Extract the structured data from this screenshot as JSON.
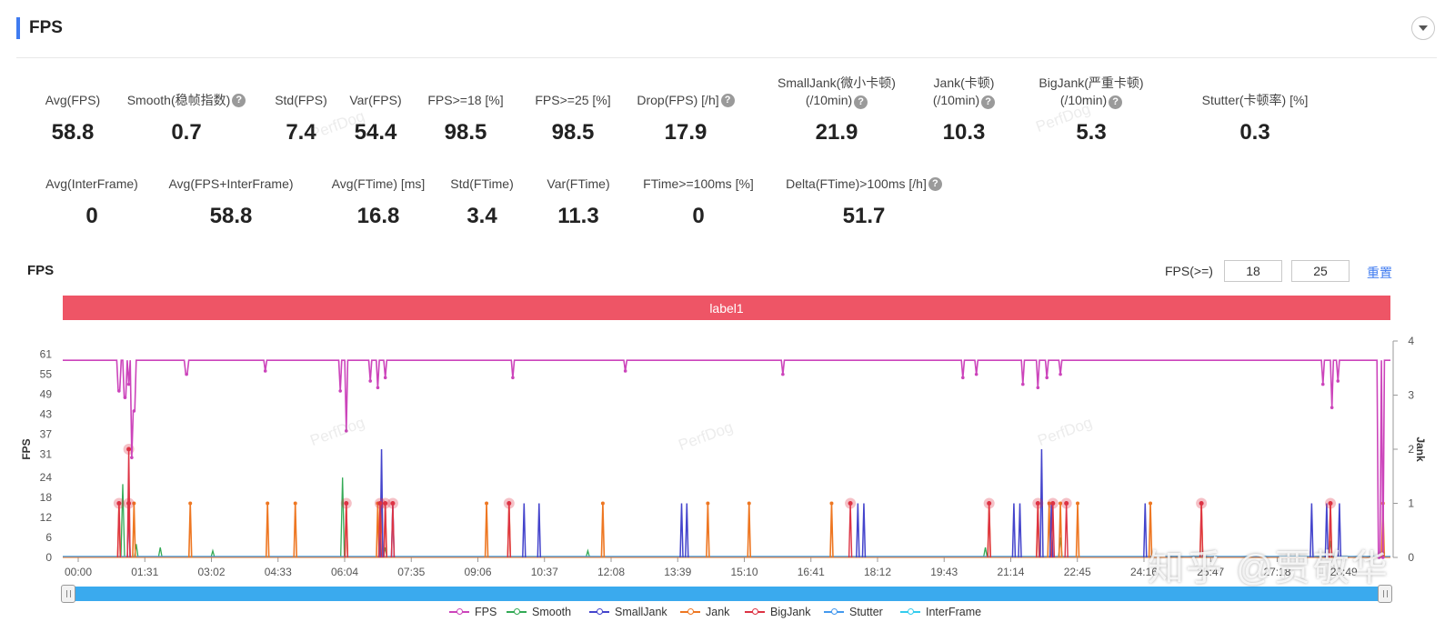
{
  "header": {
    "title": "FPS"
  },
  "metrics_row1": [
    {
      "label": "Avg(FPS)",
      "value": "58.8",
      "help": false
    },
    {
      "label": "Smooth(稳帧指数)",
      "value": "0.7",
      "help": true
    },
    {
      "label": "Std(FPS)",
      "value": "7.4",
      "help": false
    },
    {
      "label": "Var(FPS)",
      "value": "54.4",
      "help": false
    },
    {
      "label": "FPS>=18 [%]",
      "value": "98.5",
      "help": false
    },
    {
      "label": "FPS>=25 [%]",
      "value": "98.5",
      "help": false
    },
    {
      "label": "Drop(FPS) [/h]",
      "value": "17.9",
      "help": true
    },
    {
      "label": "SmallJank(微小卡顿)",
      "label2": "(/10min)",
      "value": "21.9",
      "help": true
    },
    {
      "label": "Jank(卡顿)",
      "label2": "(/10min)",
      "value": "10.3",
      "help": true
    },
    {
      "label": "BigJank(严重卡顿)",
      "label2": "(/10min)",
      "value": "5.3",
      "help": true
    },
    {
      "label": "Stutter(卡顿率) [%]",
      "value": "0.3",
      "help": false
    }
  ],
  "metrics_row2": [
    {
      "label": "Avg(InterFrame)",
      "value": "0",
      "help": false
    },
    {
      "label": "Avg(FPS+InterFrame)",
      "value": "58.8",
      "help": false
    },
    {
      "label": "Avg(FTime) [ms]",
      "value": "16.8",
      "help": false
    },
    {
      "label": "Std(FTime)",
      "value": "3.4",
      "help": false
    },
    {
      "label": "Var(FTime)",
      "value": "11.3",
      "help": false
    },
    {
      "label": "FTime>=100ms [%]",
      "value": "0",
      "help": false
    },
    {
      "label": "Delta(FTime)>100ms [/h]",
      "value": "51.7",
      "help": true
    }
  ],
  "chart_section": {
    "title": "FPS",
    "threshold_label": "FPS(>=)",
    "threshold_1": "18",
    "threshold_2": "25",
    "reset_label": "重置",
    "band_label": "label1",
    "help_glyph": "?"
  },
  "watermark_text": "PerfDog",
  "attribution": "知乎 @贾敬华",
  "colors": {
    "fps": "#cc44bb",
    "smooth": "#33aa55",
    "smalljank": "#4444cc",
    "jank": "#ee7722",
    "bigjank": "#dd3344",
    "stutter": "#4499ee",
    "interframe": "#33ccee",
    "accent": "#3f7bf0",
    "band": "#ee5566"
  },
  "chart_data": {
    "type": "line",
    "ylabel": "FPS",
    "y2label": "Jank",
    "ylim": [
      0,
      65
    ],
    "y_ticks": [
      0,
      6,
      12,
      18,
      24,
      31,
      37,
      43,
      49,
      55,
      61
    ],
    "y2lim": [
      0,
      4
    ],
    "y2_ticks": [
      0,
      1,
      2,
      3,
      4
    ],
    "xlim": [
      0,
      1770
    ],
    "x_ticks": [
      "00:00",
      "01:31",
      "03:02",
      "04:33",
      "06:04",
      "07:35",
      "09:06",
      "10:37",
      "12:08",
      "13:39",
      "15:10",
      "16:41",
      "18:12",
      "19:43",
      "21:14",
      "22:45",
      "24:16",
      "25:47",
      "27:18",
      "28:49"
    ],
    "legend": [
      "FPS",
      "Smooth",
      "SmallJank",
      "Jank",
      "BigJank",
      "Stutter",
      "InterFrame"
    ],
    "fps_baseline": 58.8,
    "fps_dips": [
      {
        "t": 75,
        "v": 50
      },
      {
        "t": 83,
        "v": 48
      },
      {
        "t": 88,
        "v": 52
      },
      {
        "t": 92,
        "v": 30
      },
      {
        "t": 95,
        "v": 44
      },
      {
        "t": 165,
        "v": 55
      },
      {
        "t": 270,
        "v": 56
      },
      {
        "t": 370,
        "v": 50
      },
      {
        "t": 378,
        "v": 38
      },
      {
        "t": 410,
        "v": 53
      },
      {
        "t": 420,
        "v": 51
      },
      {
        "t": 430,
        "v": 54
      },
      {
        "t": 600,
        "v": 54
      },
      {
        "t": 750,
        "v": 56
      },
      {
        "t": 960,
        "v": 55
      },
      {
        "t": 1200,
        "v": 54
      },
      {
        "t": 1218,
        "v": 55
      },
      {
        "t": 1280,
        "v": 52
      },
      {
        "t": 1300,
        "v": 51
      },
      {
        "t": 1312,
        "v": 54
      },
      {
        "t": 1330,
        "v": 55
      },
      {
        "t": 1680,
        "v": 52
      },
      {
        "t": 1692,
        "v": 45
      },
      {
        "t": 1700,
        "v": 53
      },
      {
        "t": 1755,
        "v": 0
      },
      {
        "t": 1760,
        "v": 0
      }
    ],
    "jank_t": [
      75,
      95,
      170,
      273,
      310,
      378,
      420,
      425,
      430,
      565,
      595,
      720,
      860,
      915,
      1025,
      1235,
      1300,
      1315,
      1330,
      1353,
      1450,
      1518,
      1690,
      1760
    ],
    "bigjank": [
      {
        "t": 75,
        "v": 1
      },
      {
        "t": 88,
        "v": 1
      },
      {
        "t": 88,
        "v": 2
      },
      {
        "t": 378,
        "v": 1
      },
      {
        "t": 423,
        "v": 1
      },
      {
        "t": 430,
        "v": 1
      },
      {
        "t": 440,
        "v": 1
      },
      {
        "t": 595,
        "v": 1
      },
      {
        "t": 1050,
        "v": 1
      },
      {
        "t": 1235,
        "v": 1
      },
      {
        "t": 1300,
        "v": 1
      },
      {
        "t": 1320,
        "v": 1
      },
      {
        "t": 1338,
        "v": 1
      },
      {
        "t": 1518,
        "v": 1
      },
      {
        "t": 1690,
        "v": 1
      }
    ],
    "smalljank": [
      {
        "t": 88,
        "v": 1
      },
      {
        "t": 425,
        "v": 2
      },
      {
        "t": 440,
        "v": 1
      },
      {
        "t": 615,
        "v": 1
      },
      {
        "t": 635,
        "v": 1
      },
      {
        "t": 825,
        "v": 1
      },
      {
        "t": 832,
        "v": 1
      },
      {
        "t": 1060,
        "v": 1
      },
      {
        "t": 1068,
        "v": 1
      },
      {
        "t": 1268,
        "v": 1
      },
      {
        "t": 1276,
        "v": 1
      },
      {
        "t": 1305,
        "v": 2
      },
      {
        "t": 1318,
        "v": 1
      },
      {
        "t": 1443,
        "v": 1
      },
      {
        "t": 1665,
        "v": 1
      },
      {
        "t": 1685,
        "v": 1
      },
      {
        "t": 1702,
        "v": 1
      }
    ],
    "smooth_spikes": [
      {
        "t": 80,
        "v": 22
      },
      {
        "t": 98,
        "v": 4
      },
      {
        "t": 130,
        "v": 3
      },
      {
        "t": 200,
        "v": 2
      },
      {
        "t": 373,
        "v": 24
      },
      {
        "t": 430,
        "v": 3
      },
      {
        "t": 700,
        "v": 2
      },
      {
        "t": 1230,
        "v": 3
      },
      {
        "t": 1330,
        "v": 6
      },
      {
        "t": 1690,
        "v": 5
      }
    ]
  }
}
